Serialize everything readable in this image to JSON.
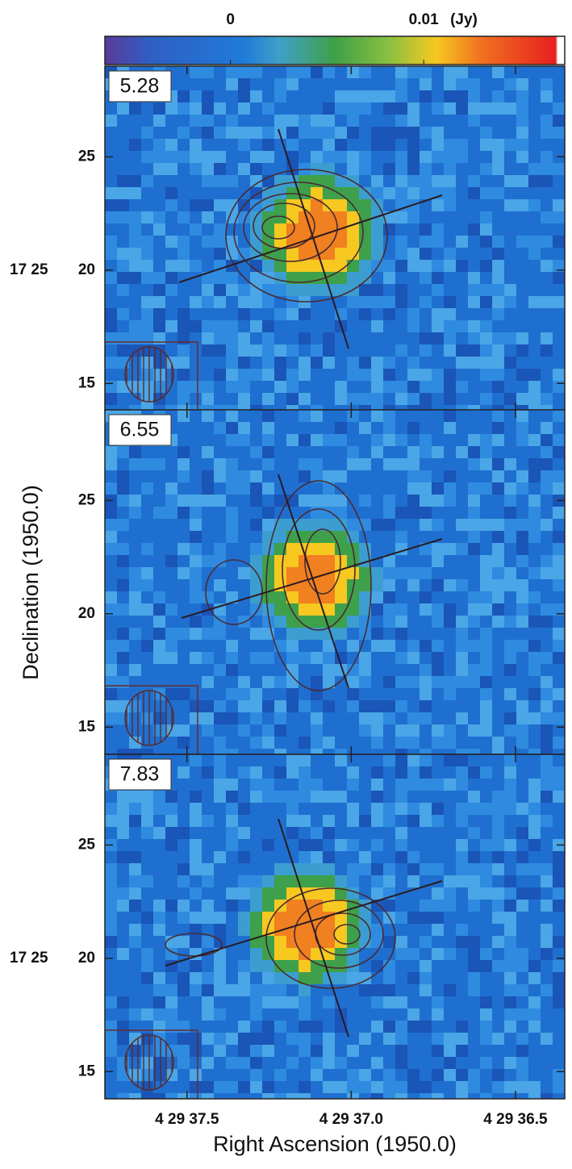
{
  "chart_data": {
    "type": "heatmap",
    "colorbar": {
      "lim": [
        -0.0065,
        0.0173
      ],
      "ticks": [
        0,
        0.01
      ],
      "unit": "(Jy)"
    },
    "panels": [
      {
        "label": "5.28",
        "dec_prefix": "17 25"
      },
      {
        "label": "6.55"
      },
      {
        "label": "7.83",
        "dec_prefix": "17 25"
      }
    ],
    "ylim": [
      13.8,
      29.0
    ],
    "yticks": [
      15,
      20,
      25
    ],
    "xlim": [
      37.75,
      36.35
    ],
    "xticks": [
      {
        "value": 37.5,
        "label": "4 29 37.5"
      },
      {
        "value": 37.0,
        "label": "4 29 37.0"
      },
      {
        "value": 36.5,
        "label": "4 29 36.5"
      }
    ],
    "xlabel": "Right Ascension (1950.0)",
    "ylabel": "Declination (1950.0)"
  }
}
